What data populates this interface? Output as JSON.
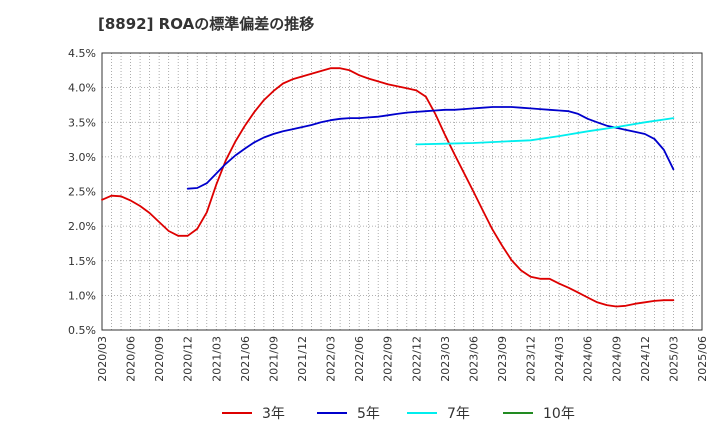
{
  "chart_data": {
    "type": "line",
    "title": "[8892]  ROAの標準偏差の推移",
    "xlabel": "",
    "ylabel": "",
    "ylim": [
      0.5,
      4.5
    ],
    "y_tick_labels": [
      "0.5%",
      "1.0%",
      "1.5%",
      "2.0%",
      "2.5%",
      "3.0%",
      "3.5%",
      "4.0%",
      "4.5%"
    ],
    "x_start": "2020/03",
    "x_end": "2025/06",
    "x_tick_labels": [
      "2020/03",
      "2020/06",
      "2020/09",
      "2020/12",
      "2021/03",
      "2021/06",
      "2021/09",
      "2021/12",
      "2022/03",
      "2022/06",
      "2022/09",
      "2022/12",
      "2023/03",
      "2023/06",
      "2023/09",
      "2023/12",
      "2024/03",
      "2024/06",
      "2024/09",
      "2024/12",
      "2025/03",
      "2025/06"
    ],
    "grid": true,
    "legend_position": "bottom",
    "series": [
      {
        "name": "3年",
        "color": "#dd0000",
        "x": [
          "2020/03",
          "2020/04",
          "2020/05",
          "2020/06",
          "2020/07",
          "2020/08",
          "2020/09",
          "2020/10",
          "2020/11",
          "2020/12",
          "2021/01",
          "2021/02",
          "2021/03",
          "2021/04",
          "2021/05",
          "2021/06",
          "2021/07",
          "2021/08",
          "2021/09",
          "2021/10",
          "2021/11",
          "2021/12",
          "2022/01",
          "2022/02",
          "2022/03",
          "2022/04",
          "2022/05",
          "2022/06",
          "2022/07",
          "2022/08",
          "2022/09",
          "2022/10",
          "2022/11",
          "2022/12",
          "2023/01",
          "2023/02",
          "2023/03",
          "2023/04",
          "2023/05",
          "2023/06",
          "2023/07",
          "2023/08",
          "2023/09",
          "2023/10",
          "2023/11",
          "2023/12",
          "2024/01",
          "2024/02",
          "2024/03",
          "2024/04",
          "2024/05",
          "2024/06",
          "2024/07",
          "2024/08",
          "2024/09",
          "2024/10",
          "2024/11",
          "2024/12",
          "2025/01",
          "2025/02",
          "2025/03"
        ],
        "values": [
          2.38,
          2.44,
          2.43,
          2.37,
          2.29,
          2.19,
          2.06,
          1.93,
          1.86,
          1.86,
          1.96,
          2.2,
          2.6,
          2.95,
          3.22,
          3.45,
          3.65,
          3.82,
          3.95,
          4.06,
          4.12,
          4.16,
          4.2,
          4.24,
          4.28,
          4.28,
          4.25,
          4.18,
          4.13,
          4.09,
          4.05,
          4.02,
          3.99,
          3.96,
          3.87,
          3.62,
          3.32,
          3.04,
          2.77,
          2.5,
          2.22,
          1.95,
          1.72,
          1.51,
          1.36,
          1.27,
          1.24,
          1.24,
          1.17,
          1.11,
          1.04,
          0.97,
          0.9,
          0.86,
          0.84,
          0.85,
          0.88,
          0.9,
          0.92,
          0.93,
          0.93
        ]
      },
      {
        "name": "5年",
        "color": "#0000cc",
        "x": [
          "2020/12",
          "2021/01",
          "2021/02",
          "2021/03",
          "2021/04",
          "2021/05",
          "2021/06",
          "2021/07",
          "2021/08",
          "2021/09",
          "2021/10",
          "2021/11",
          "2021/12",
          "2022/01",
          "2022/02",
          "2022/03",
          "2022/04",
          "2022/05",
          "2022/06",
          "2022/07",
          "2022/08",
          "2022/09",
          "2022/10",
          "2022/11",
          "2022/12",
          "2023/01",
          "2023/02",
          "2023/03",
          "2023/04",
          "2023/05",
          "2023/06",
          "2023/07",
          "2023/08",
          "2023/09",
          "2023/10",
          "2023/11",
          "2023/12",
          "2024/01",
          "2024/02",
          "2024/03",
          "2024/04",
          "2024/05",
          "2024/06",
          "2024/07",
          "2024/08",
          "2024/09",
          "2024/10",
          "2024/11",
          "2024/12",
          "2025/01",
          "2025/02",
          "2025/03"
        ],
        "values": [
          2.54,
          2.55,
          2.62,
          2.76,
          2.9,
          3.02,
          3.12,
          3.21,
          3.28,
          3.33,
          3.37,
          3.4,
          3.43,
          3.46,
          3.5,
          3.53,
          3.55,
          3.56,
          3.56,
          3.57,
          3.58,
          3.6,
          3.62,
          3.64,
          3.65,
          3.66,
          3.67,
          3.68,
          3.68,
          3.69,
          3.7,
          3.71,
          3.72,
          3.72,
          3.72,
          3.71,
          3.7,
          3.69,
          3.68,
          3.67,
          3.66,
          3.62,
          3.55,
          3.5,
          3.45,
          3.42,
          3.39,
          3.36,
          3.33,
          3.26,
          3.1,
          2.82
        ]
      },
      {
        "name": "7年",
        "color": "#00eeee",
        "x": [
          "2022/12",
          "2023/03",
          "2023/06",
          "2023/09",
          "2023/12",
          "2024/03",
          "2024/06",
          "2024/09",
          "2024/12",
          "2025/03"
        ],
        "values": [
          3.18,
          3.19,
          3.2,
          3.22,
          3.24,
          3.3,
          3.37,
          3.43,
          3.5,
          3.56
        ]
      },
      {
        "name": "10年",
        "color": "#228b22",
        "x": [],
        "values": []
      }
    ]
  }
}
